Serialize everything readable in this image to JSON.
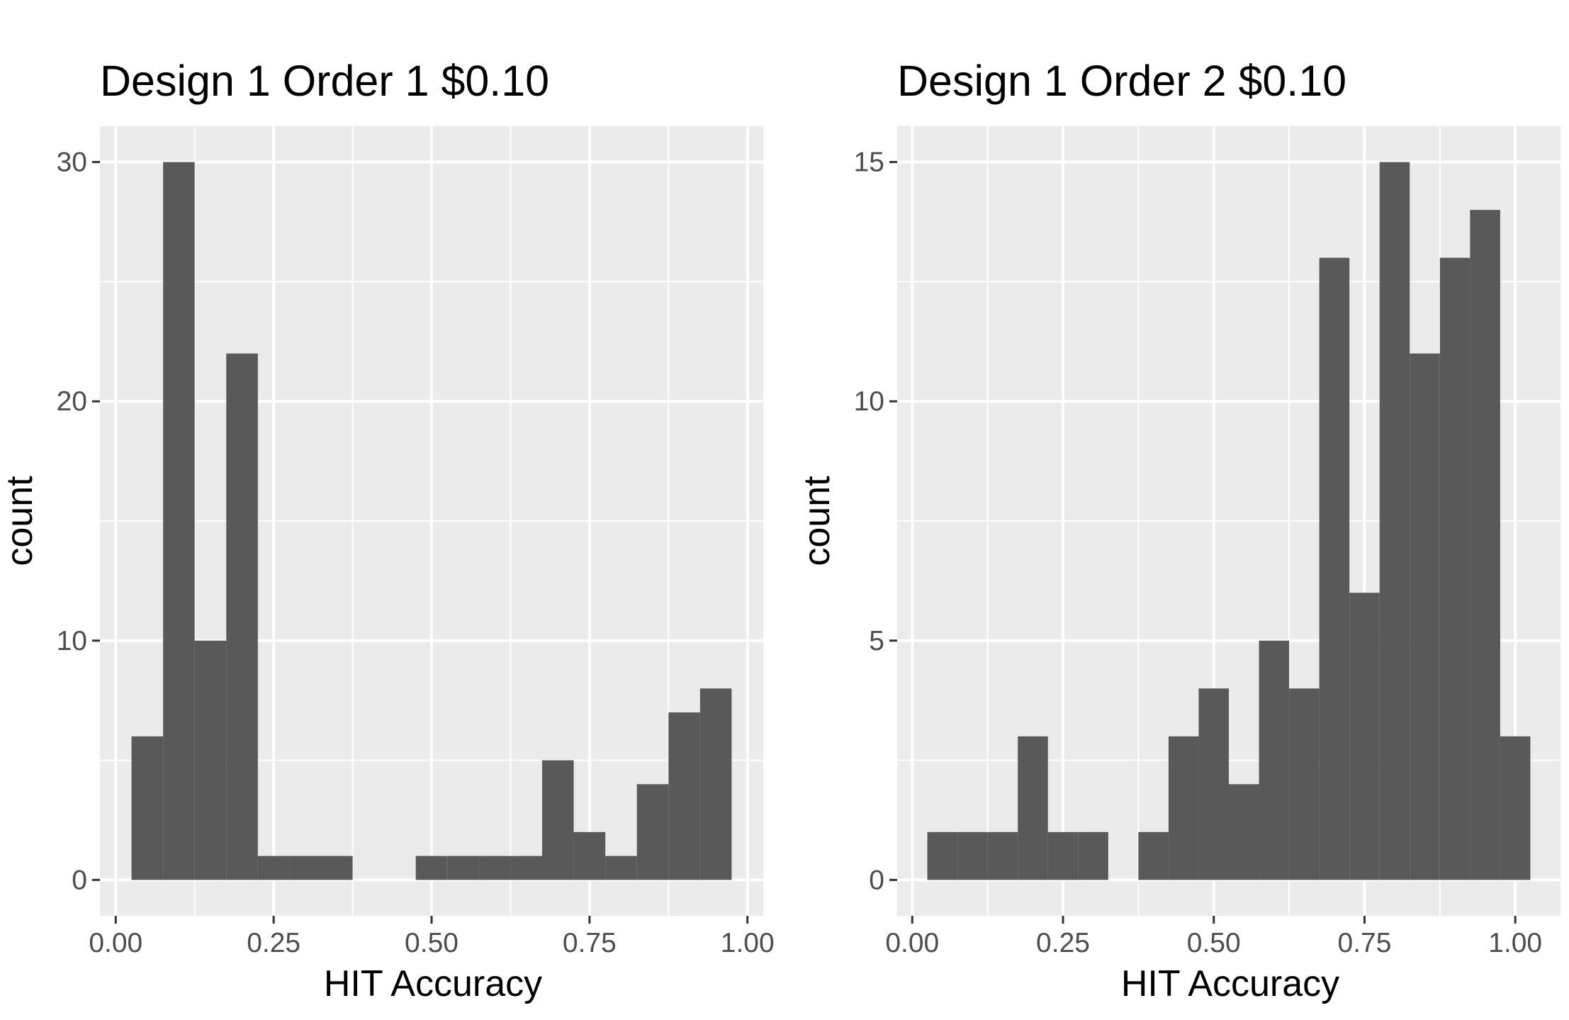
{
  "chart_data": [
    {
      "type": "bar",
      "title": "Design 1 Order 1 $0.10",
      "xlabel": "HIT Accuracy",
      "ylabel": "count",
      "xlim": [
        -0.025,
        1.025
      ],
      "ylim": [
        -1.5,
        31.5
      ],
      "xticks": [
        0,
        0.25,
        0.5,
        0.75,
        1
      ],
      "xtick_labels": [
        "0.00",
        "0.25",
        "0.50",
        "0.75",
        "1.00"
      ],
      "yticks": [
        0,
        10,
        20,
        30
      ],
      "ytick_labels": [
        "0",
        "10",
        "20",
        "30"
      ],
      "bin_width": 0.05,
      "bin_centers": [
        0.05,
        0.1,
        0.15,
        0.2,
        0.25,
        0.3,
        0.35,
        0.4,
        0.45,
        0.5,
        0.55,
        0.6,
        0.65,
        0.7,
        0.75,
        0.8,
        0.85,
        0.9,
        0.95
      ],
      "values": [
        6,
        30,
        10,
        22,
        1,
        1,
        1,
        0,
        0,
        1,
        1,
        1,
        1,
        5,
        2,
        1,
        4,
        7,
        8
      ],
      "grid": true
    },
    {
      "type": "bar",
      "title": "Design 1 Order 2 $0.10",
      "xlabel": "HIT Accuracy",
      "ylabel": "count",
      "xlim": [
        -0.025,
        1.075
      ],
      "ylim": [
        -0.75,
        15.75
      ],
      "xticks": [
        0,
        0.25,
        0.5,
        0.75,
        1
      ],
      "xtick_labels": [
        "0.00",
        "0.25",
        "0.50",
        "0.75",
        "1.00"
      ],
      "yticks": [
        0,
        5,
        10,
        15
      ],
      "ytick_labels": [
        "0",
        "5",
        "10",
        "15"
      ],
      "bin_width": 0.05,
      "bin_centers": [
        0.05,
        0.1,
        0.15,
        0.2,
        0.25,
        0.3,
        0.35,
        0.4,
        0.45,
        0.5,
        0.55,
        0.6,
        0.65,
        0.7,
        0.75,
        0.8,
        0.85,
        0.9,
        0.95,
        1.0
      ],
      "values": [
        1,
        1,
        1,
        3,
        1,
        1,
        0,
        1,
        3,
        4,
        2,
        5,
        4,
        13,
        6,
        15,
        11,
        13,
        14,
        3
      ],
      "grid": true
    }
  ]
}
